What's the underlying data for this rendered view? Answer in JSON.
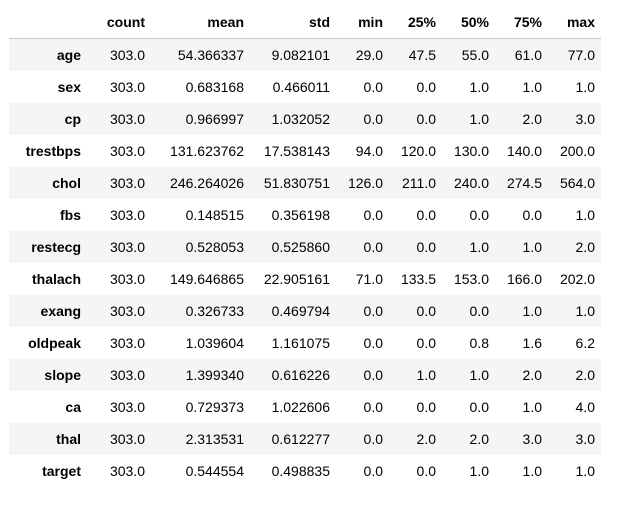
{
  "table": {
    "columns": [
      "count",
      "mean",
      "std",
      "min",
      "25%",
      "50%",
      "75%",
      "max"
    ],
    "rows": [
      {
        "label": "age",
        "values": [
          "303.0",
          "54.366337",
          "9.082101",
          "29.0",
          "47.5",
          "55.0",
          "61.0",
          "77.0"
        ]
      },
      {
        "label": "sex",
        "values": [
          "303.0",
          "0.683168",
          "0.466011",
          "0.0",
          "0.0",
          "1.0",
          "1.0",
          "1.0"
        ]
      },
      {
        "label": "cp",
        "values": [
          "303.0",
          "0.966997",
          "1.032052",
          "0.0",
          "0.0",
          "1.0",
          "2.0",
          "3.0"
        ]
      },
      {
        "label": "trestbps",
        "values": [
          "303.0",
          "131.623762",
          "17.538143",
          "94.0",
          "120.0",
          "130.0",
          "140.0",
          "200.0"
        ]
      },
      {
        "label": "chol",
        "values": [
          "303.0",
          "246.264026",
          "51.830751",
          "126.0",
          "211.0",
          "240.0",
          "274.5",
          "564.0"
        ]
      },
      {
        "label": "fbs",
        "values": [
          "303.0",
          "0.148515",
          "0.356198",
          "0.0",
          "0.0",
          "0.0",
          "0.0",
          "1.0"
        ]
      },
      {
        "label": "restecg",
        "values": [
          "303.0",
          "0.528053",
          "0.525860",
          "0.0",
          "0.0",
          "1.0",
          "1.0",
          "2.0"
        ]
      },
      {
        "label": "thalach",
        "values": [
          "303.0",
          "149.646865",
          "22.905161",
          "71.0",
          "133.5",
          "153.0",
          "166.0",
          "202.0"
        ]
      },
      {
        "label": "exang",
        "values": [
          "303.0",
          "0.326733",
          "0.469794",
          "0.0",
          "0.0",
          "0.0",
          "1.0",
          "1.0"
        ]
      },
      {
        "label": "oldpeak",
        "values": [
          "303.0",
          "1.039604",
          "1.161075",
          "0.0",
          "0.0",
          "0.8",
          "1.6",
          "6.2"
        ]
      },
      {
        "label": "slope",
        "values": [
          "303.0",
          "1.399340",
          "0.616226",
          "0.0",
          "1.0",
          "1.0",
          "2.0",
          "2.0"
        ]
      },
      {
        "label": "ca",
        "values": [
          "303.0",
          "0.729373",
          "1.022606",
          "0.0",
          "0.0",
          "0.0",
          "1.0",
          "4.0"
        ]
      },
      {
        "label": "thal",
        "values": [
          "303.0",
          "2.313531",
          "0.612277",
          "0.0",
          "2.0",
          "2.0",
          "3.0",
          "3.0"
        ]
      },
      {
        "label": "target",
        "values": [
          "303.0",
          "0.544554",
          "0.498835",
          "0.0",
          "0.0",
          "1.0",
          "1.0",
          "1.0"
        ]
      }
    ]
  }
}
